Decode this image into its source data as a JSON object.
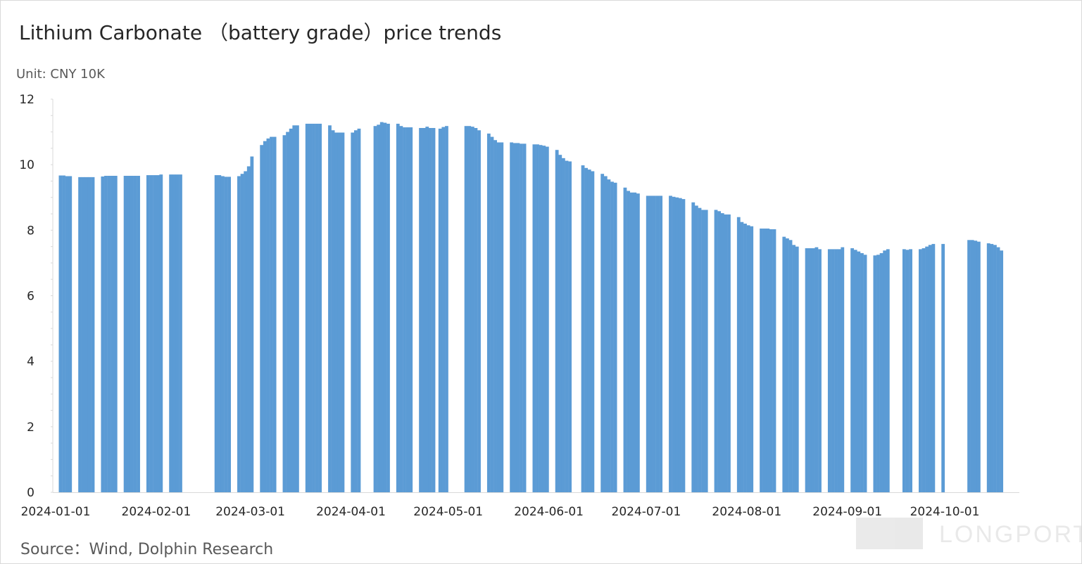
{
  "chart_data": {
    "type": "bar",
    "title": "Lithium Carbonate （battery grade）price trends",
    "unit_label": "Unit: CNY 10K",
    "source": "Source：Wind, Dolphin Research",
    "watermark": "LONGPORT",
    "ylim": [
      0,
      12
    ],
    "yticks": [
      0,
      2,
      4,
      6,
      8,
      10,
      12
    ],
    "xlim": [
      "2024-01-01",
      "2024-10-24"
    ],
    "xticks": [
      "2024-01-01",
      "2024-02-01",
      "2024-03-01",
      "2024-04-01",
      "2024-05-01",
      "2024-06-01",
      "2024-07-01",
      "2024-08-01",
      "2024-09-01",
      "2024-10-01"
    ],
    "series": [
      {
        "color": "#5b9bd5",
        "points": [
          [
            "2024-01-02",
            9.67
          ],
          [
            "2024-01-03",
            9.67
          ],
          [
            "2024-01-04",
            9.65
          ],
          [
            "2024-01-05",
            9.65
          ],
          [
            "2024-01-08",
            9.62
          ],
          [
            "2024-01-09",
            9.62
          ],
          [
            "2024-01-10",
            9.62
          ],
          [
            "2024-01-11",
            9.62
          ],
          [
            "2024-01-12",
            9.62
          ],
          [
            "2024-01-15",
            9.64
          ],
          [
            "2024-01-16",
            9.66
          ],
          [
            "2024-01-17",
            9.66
          ],
          [
            "2024-01-18",
            9.66
          ],
          [
            "2024-01-19",
            9.66
          ],
          [
            "2024-01-22",
            9.66
          ],
          [
            "2024-01-23",
            9.66
          ],
          [
            "2024-01-24",
            9.66
          ],
          [
            "2024-01-25",
            9.66
          ],
          [
            "2024-01-26",
            9.66
          ],
          [
            "2024-01-29",
            9.68
          ],
          [
            "2024-01-30",
            9.68
          ],
          [
            "2024-01-31",
            9.68
          ],
          [
            "2024-02-01",
            9.68
          ],
          [
            "2024-02-02",
            9.7
          ],
          [
            "2024-02-05",
            9.7
          ],
          [
            "2024-02-06",
            9.7
          ],
          [
            "2024-02-07",
            9.7
          ],
          [
            "2024-02-08",
            9.7
          ],
          [
            "2024-02-19",
            9.68
          ],
          [
            "2024-02-20",
            9.68
          ],
          [
            "2024-02-21",
            9.65
          ],
          [
            "2024-02-22",
            9.63
          ],
          [
            "2024-02-23",
            9.63
          ],
          [
            "2024-02-26",
            9.65
          ],
          [
            "2024-02-27",
            9.72
          ],
          [
            "2024-02-28",
            9.8
          ],
          [
            "2024-02-29",
            9.95
          ],
          [
            "2024-03-01",
            10.25
          ],
          [
            "2024-03-04",
            10.6
          ],
          [
            "2024-03-05",
            10.72
          ],
          [
            "2024-03-06",
            10.8
          ],
          [
            "2024-03-07",
            10.85
          ],
          [
            "2024-03-08",
            10.85
          ],
          [
            "2024-03-11",
            10.9
          ],
          [
            "2024-03-12",
            11.0
          ],
          [
            "2024-03-13",
            11.1
          ],
          [
            "2024-03-14",
            11.2
          ],
          [
            "2024-03-15",
            11.2
          ],
          [
            "2024-03-18",
            11.25
          ],
          [
            "2024-03-19",
            11.25
          ],
          [
            "2024-03-20",
            11.25
          ],
          [
            "2024-03-21",
            11.25
          ],
          [
            "2024-03-22",
            11.25
          ],
          [
            "2024-03-25",
            11.2
          ],
          [
            "2024-03-26",
            11.05
          ],
          [
            "2024-03-27",
            10.98
          ],
          [
            "2024-03-28",
            10.98
          ],
          [
            "2024-03-29",
            10.98
          ],
          [
            "2024-04-01",
            10.98
          ],
          [
            "2024-04-02",
            11.05
          ],
          [
            "2024-04-03",
            11.1
          ],
          [
            "2024-04-08",
            11.18
          ],
          [
            "2024-04-09",
            11.22
          ],
          [
            "2024-04-10",
            11.3
          ],
          [
            "2024-04-11",
            11.28
          ],
          [
            "2024-04-12",
            11.25
          ],
          [
            "2024-04-15",
            11.25
          ],
          [
            "2024-04-16",
            11.18
          ],
          [
            "2024-04-17",
            11.14
          ],
          [
            "2024-04-18",
            11.14
          ],
          [
            "2024-04-19",
            11.14
          ],
          [
            "2024-04-22",
            11.12
          ],
          [
            "2024-04-23",
            11.12
          ],
          [
            "2024-04-24",
            11.16
          ],
          [
            "2024-04-25",
            11.12
          ],
          [
            "2024-04-26",
            11.12
          ],
          [
            "2024-04-28",
            11.1
          ],
          [
            "2024-04-29",
            11.15
          ],
          [
            "2024-04-30",
            11.18
          ],
          [
            "2024-05-06",
            11.18
          ],
          [
            "2024-05-07",
            11.18
          ],
          [
            "2024-05-08",
            11.16
          ],
          [
            "2024-05-09",
            11.12
          ],
          [
            "2024-05-10",
            11.05
          ],
          [
            "2024-05-13",
            10.95
          ],
          [
            "2024-05-14",
            10.85
          ],
          [
            "2024-05-15",
            10.75
          ],
          [
            "2024-05-16",
            10.68
          ],
          [
            "2024-05-17",
            10.68
          ],
          [
            "2024-05-20",
            10.68
          ],
          [
            "2024-05-21",
            10.66
          ],
          [
            "2024-05-22",
            10.66
          ],
          [
            "2024-05-23",
            10.64
          ],
          [
            "2024-05-24",
            10.64
          ],
          [
            "2024-05-27",
            10.62
          ],
          [
            "2024-05-28",
            10.62
          ],
          [
            "2024-05-29",
            10.6
          ],
          [
            "2024-05-30",
            10.58
          ],
          [
            "2024-05-31",
            10.55
          ],
          [
            "2024-06-03",
            10.45
          ],
          [
            "2024-06-04",
            10.3
          ],
          [
            "2024-06-05",
            10.2
          ],
          [
            "2024-06-06",
            10.12
          ],
          [
            "2024-06-07",
            10.1
          ],
          [
            "2024-06-11",
            9.98
          ],
          [
            "2024-06-12",
            9.9
          ],
          [
            "2024-06-13",
            9.85
          ],
          [
            "2024-06-14",
            9.8
          ],
          [
            "2024-06-17",
            9.72
          ],
          [
            "2024-06-18",
            9.65
          ],
          [
            "2024-06-19",
            9.55
          ],
          [
            "2024-06-20",
            9.48
          ],
          [
            "2024-06-21",
            9.45
          ],
          [
            "2024-06-24",
            9.3
          ],
          [
            "2024-06-25",
            9.2
          ],
          [
            "2024-06-26",
            9.15
          ],
          [
            "2024-06-27",
            9.15
          ],
          [
            "2024-06-28",
            9.12
          ],
          [
            "2024-07-01",
            9.05
          ],
          [
            "2024-07-02",
            9.05
          ],
          [
            "2024-07-03",
            9.05
          ],
          [
            "2024-07-04",
            9.05
          ],
          [
            "2024-07-05",
            9.05
          ],
          [
            "2024-07-08",
            9.05
          ],
          [
            "2024-07-09",
            9.02
          ],
          [
            "2024-07-10",
            9.0
          ],
          [
            "2024-07-11",
            8.98
          ],
          [
            "2024-07-12",
            8.95
          ],
          [
            "2024-07-15",
            8.85
          ],
          [
            "2024-07-16",
            8.75
          ],
          [
            "2024-07-17",
            8.68
          ],
          [
            "2024-07-18",
            8.62
          ],
          [
            "2024-07-19",
            8.62
          ],
          [
            "2024-07-22",
            8.62
          ],
          [
            "2024-07-23",
            8.58
          ],
          [
            "2024-07-24",
            8.52
          ],
          [
            "2024-07-25",
            8.48
          ],
          [
            "2024-07-26",
            8.48
          ],
          [
            "2024-07-29",
            8.4
          ],
          [
            "2024-07-30",
            8.25
          ],
          [
            "2024-07-31",
            8.2
          ],
          [
            "2024-08-01",
            8.15
          ],
          [
            "2024-08-02",
            8.12
          ],
          [
            "2024-08-05",
            8.05
          ],
          [
            "2024-08-06",
            8.05
          ],
          [
            "2024-08-07",
            8.05
          ],
          [
            "2024-08-08",
            8.03
          ],
          [
            "2024-08-09",
            8.03
          ],
          [
            "2024-08-12",
            7.8
          ],
          [
            "2024-08-13",
            7.75
          ],
          [
            "2024-08-14",
            7.7
          ],
          [
            "2024-08-15",
            7.55
          ],
          [
            "2024-08-16",
            7.5
          ],
          [
            "2024-08-19",
            7.45
          ],
          [
            "2024-08-20",
            7.45
          ],
          [
            "2024-08-21",
            7.45
          ],
          [
            "2024-08-22",
            7.48
          ],
          [
            "2024-08-23",
            7.42
          ],
          [
            "2024-08-26",
            7.42
          ],
          [
            "2024-08-27",
            7.42
          ],
          [
            "2024-08-28",
            7.42
          ],
          [
            "2024-08-29",
            7.42
          ],
          [
            "2024-08-30",
            7.48
          ],
          [
            "2024-09-02",
            7.45
          ],
          [
            "2024-09-03",
            7.4
          ],
          [
            "2024-09-04",
            7.35
          ],
          [
            "2024-09-05",
            7.3
          ],
          [
            "2024-09-06",
            7.25
          ],
          [
            "2024-09-09",
            7.23
          ],
          [
            "2024-09-10",
            7.25
          ],
          [
            "2024-09-11",
            7.3
          ],
          [
            "2024-09-12",
            7.38
          ],
          [
            "2024-09-13",
            7.42
          ],
          [
            "2024-09-18",
            7.42
          ],
          [
            "2024-09-19",
            7.4
          ],
          [
            "2024-09-20",
            7.42
          ],
          [
            "2024-09-23",
            7.42
          ],
          [
            "2024-09-24",
            7.45
          ],
          [
            "2024-09-25",
            7.5
          ],
          [
            "2024-09-26",
            7.55
          ],
          [
            "2024-09-27",
            7.58
          ],
          [
            "2024-09-30",
            7.58
          ],
          [
            "2024-10-08",
            7.7
          ],
          [
            "2024-10-09",
            7.7
          ],
          [
            "2024-10-10",
            7.68
          ],
          [
            "2024-10-11",
            7.65
          ],
          [
            "2024-10-14",
            7.6
          ],
          [
            "2024-10-15",
            7.58
          ],
          [
            "2024-10-16",
            7.55
          ],
          [
            "2024-10-17",
            7.48
          ],
          [
            "2024-10-18",
            7.38
          ]
        ]
      }
    ],
    "grid": false,
    "legend": "none"
  }
}
